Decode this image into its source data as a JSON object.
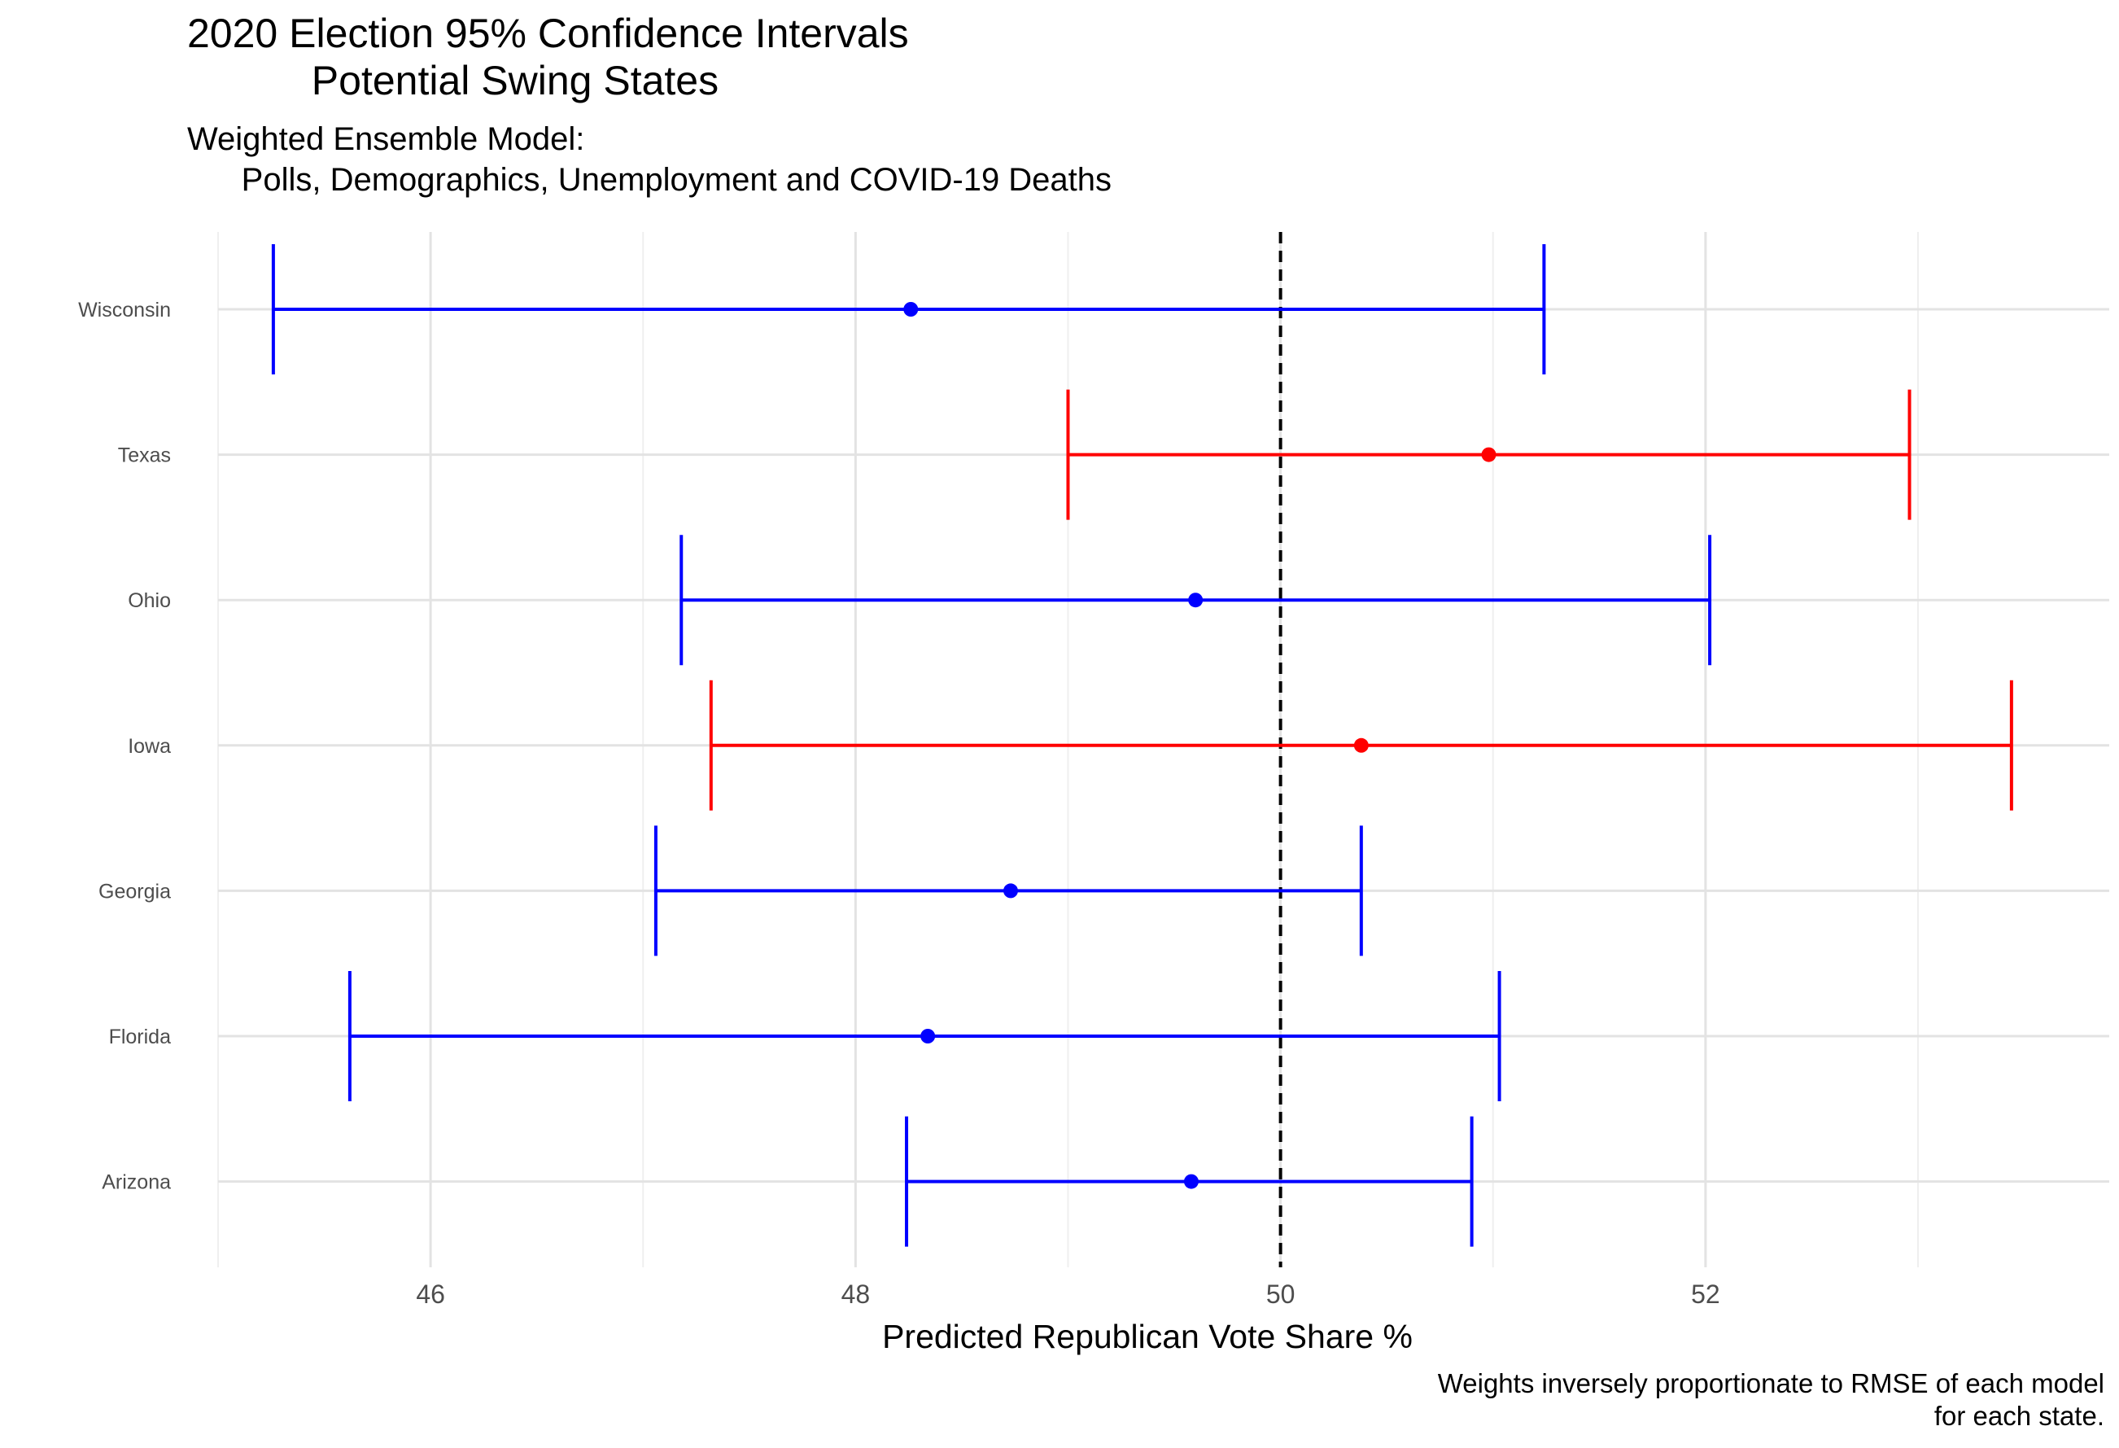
{
  "chart_data": {
    "type": "errorbar",
    "title": "2020 Election 95% Confidence Intervals\n           Potential Swing States",
    "subtitle": "Weighted Ensemble Model:\n      Polls, Demographics, Unemployment and COVID-19 Deaths",
    "xlabel": "Predicted Republican Vote Share %",
    "ylabel": "",
    "caption": "Weights inversely proportionate to RMSE of each model\nfor each state.",
    "xlim": [
      45.0,
      53.9
    ],
    "xticks": [
      46,
      48,
      50,
      52
    ],
    "grid": true,
    "reference_line": {
      "x": 50,
      "style": "dashed",
      "color": "#000000"
    },
    "categories": [
      "Wisconsin",
      "Texas",
      "Ohio",
      "Iowa",
      "Georgia",
      "Florida",
      "Arizona"
    ],
    "points": [
      {
        "state": "Wisconsin",
        "estimate": 48.26,
        "lower": 45.26,
        "upper": 51.24,
        "color": "#0000ff"
      },
      {
        "state": "Texas",
        "estimate": 50.98,
        "lower": 49.0,
        "upper": 52.96,
        "color": "#ff0000"
      },
      {
        "state": "Ohio",
        "estimate": 49.6,
        "lower": 47.18,
        "upper": 52.02,
        "color": "#0000ff"
      },
      {
        "state": "Iowa",
        "estimate": 50.38,
        "lower": 47.32,
        "upper": 53.44,
        "color": "#ff0000"
      },
      {
        "state": "Georgia",
        "estimate": 48.73,
        "lower": 47.06,
        "upper": 50.38,
        "color": "#0000ff"
      },
      {
        "state": "Florida",
        "estimate": 48.34,
        "lower": 45.62,
        "upper": 51.03,
        "color": "#0000ff"
      },
      {
        "state": "Arizona",
        "estimate": 49.58,
        "lower": 48.24,
        "upper": 50.9,
        "color": "#0000ff"
      }
    ]
  }
}
